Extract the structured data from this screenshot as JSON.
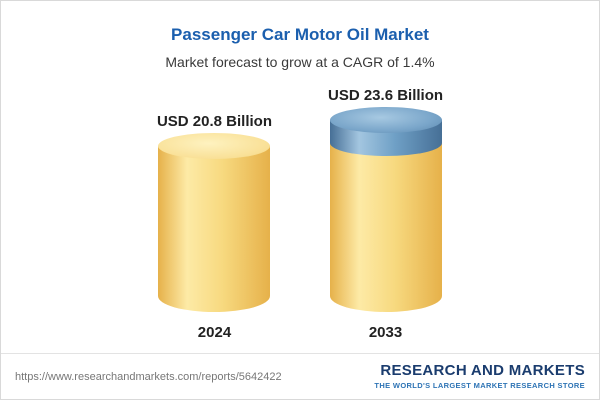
{
  "header": {
    "title": "Passenger Car Motor Oil Market",
    "subtitle": "Market forecast to grow at a CAGR of 1.4%"
  },
  "chart_data": {
    "type": "bar",
    "bar_style": "cylinder-3d",
    "title": "Passenger Car Motor Oil Market",
    "subtitle": "Market forecast to grow at a CAGR of 1.4%",
    "categories": [
      "2024",
      "2033"
    ],
    "values": [
      20.8,
      23.6
    ],
    "unit": "USD Billion",
    "value_labels": [
      "USD 20.8 Billion",
      "USD 23.6 Billion"
    ],
    "cagr_percent": 1.4,
    "legend": "none",
    "gridlines": false,
    "colors": {
      "bar_base": "#f7d97f",
      "bar_growth_top": "#6fa0c6",
      "title_text": "#1b5fae",
      "label_text": "#222222"
    }
  },
  "footer": {
    "url": "https://www.researchandmarkets.com/reports/5642422",
    "logo": {
      "line1": "RESEARCH AND MARKETS",
      "tagline": "THE WORLD'S LARGEST MARKET RESEARCH STORE"
    }
  }
}
